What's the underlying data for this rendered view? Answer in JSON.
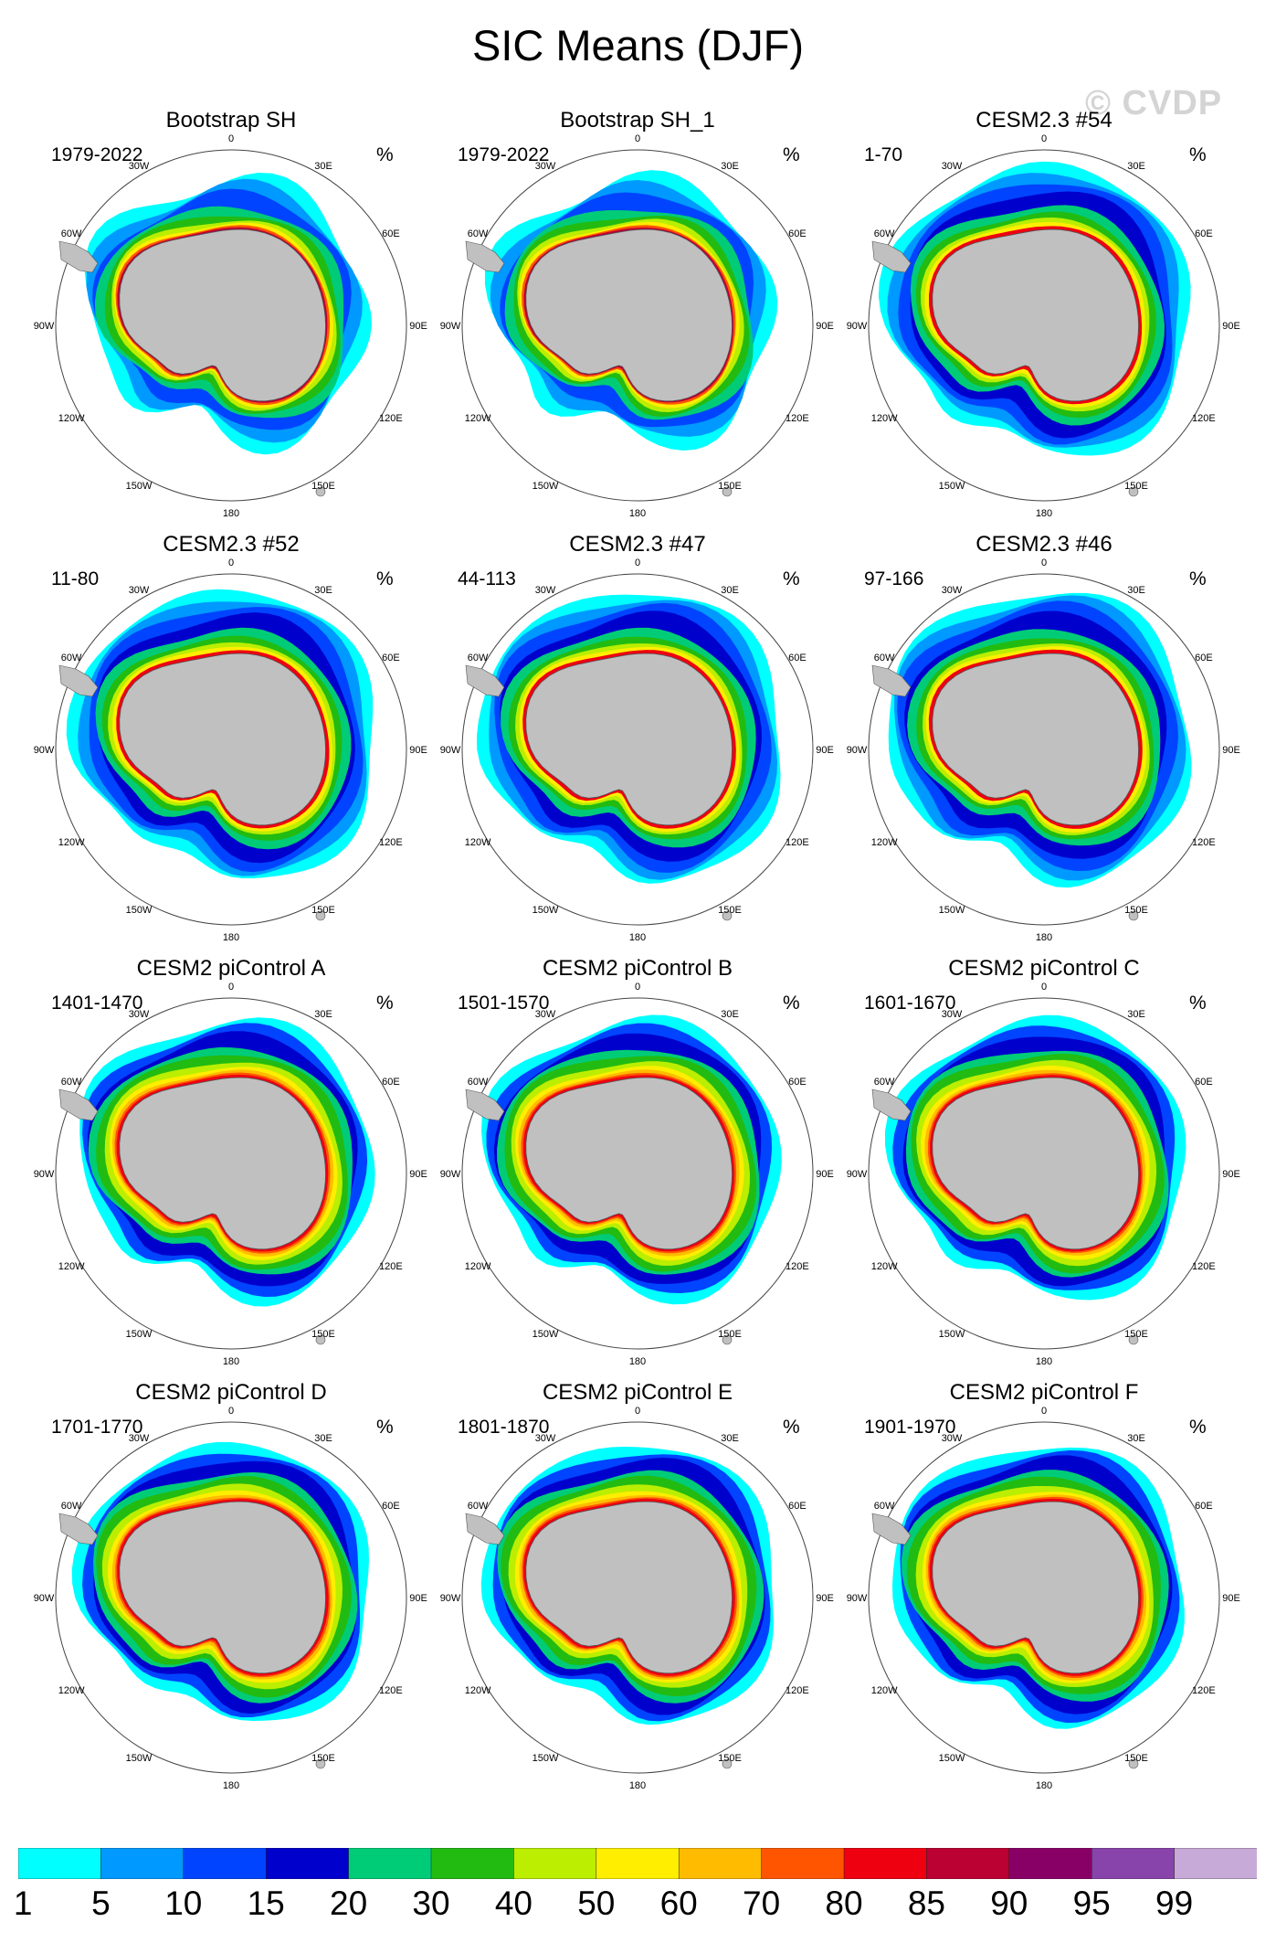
{
  "title": "SIC Means (DJF)",
  "watermark": "© CVDP",
  "units": "%",
  "lon_labels": [
    "0",
    "30E",
    "60E",
    "90E",
    "120E",
    "150E",
    "180",
    "150W",
    "120W",
    "90W",
    "60W",
    "30W"
  ],
  "panels": [
    {
      "title": "Bootstrap SH",
      "years": "1979-2022",
      "type": "obs"
    },
    {
      "title": "Bootstrap SH_1",
      "years": "1979-2022",
      "type": "obs"
    },
    {
      "title": "CESM2.3 #54",
      "years": "1-70",
      "type": "model"
    },
    {
      "title": "CESM2.3 #52",
      "years": "11-80",
      "type": "model"
    },
    {
      "title": "CESM2.3 #47",
      "years": "44-113",
      "type": "model"
    },
    {
      "title": "CESM2.3 #46",
      "years": "97-166",
      "type": "model"
    },
    {
      "title": "CESM2 piControl A",
      "years": "1401-1470",
      "type": "control"
    },
    {
      "title": "CESM2 piControl B",
      "years": "1501-1570",
      "type": "control"
    },
    {
      "title": "CESM2 piControl C",
      "years": "1601-1670",
      "type": "control"
    },
    {
      "title": "CESM2 piControl D",
      "years": "1701-1770",
      "type": "control"
    },
    {
      "title": "CESM2 piControl E",
      "years": "1801-1870",
      "type": "control"
    },
    {
      "title": "CESM2 piControl F",
      "years": "1901-1970",
      "type": "control"
    }
  ],
  "chart_data": {
    "type": "heatmap",
    "title": "SIC Means (DJF)",
    "units": "%",
    "colorbar": {
      "levels": [
        "1",
        "5",
        "10",
        "15",
        "20",
        "30",
        "40",
        "50",
        "60",
        "70",
        "80",
        "85",
        "90",
        "95",
        "99"
      ],
      "colors": [
        "#00ffff",
        "#0099ff",
        "#0044ff",
        "#0000cc",
        "#00cc77",
        "#22bb11",
        "#bbee00",
        "#ffee00",
        "#ffbb00",
        "#ff5500",
        "#ee0011",
        "#bb0033",
        "#880066",
        "#8844aa",
        "#c8aad8"
      ]
    },
    "land_color": "#c0c0c0"
  }
}
